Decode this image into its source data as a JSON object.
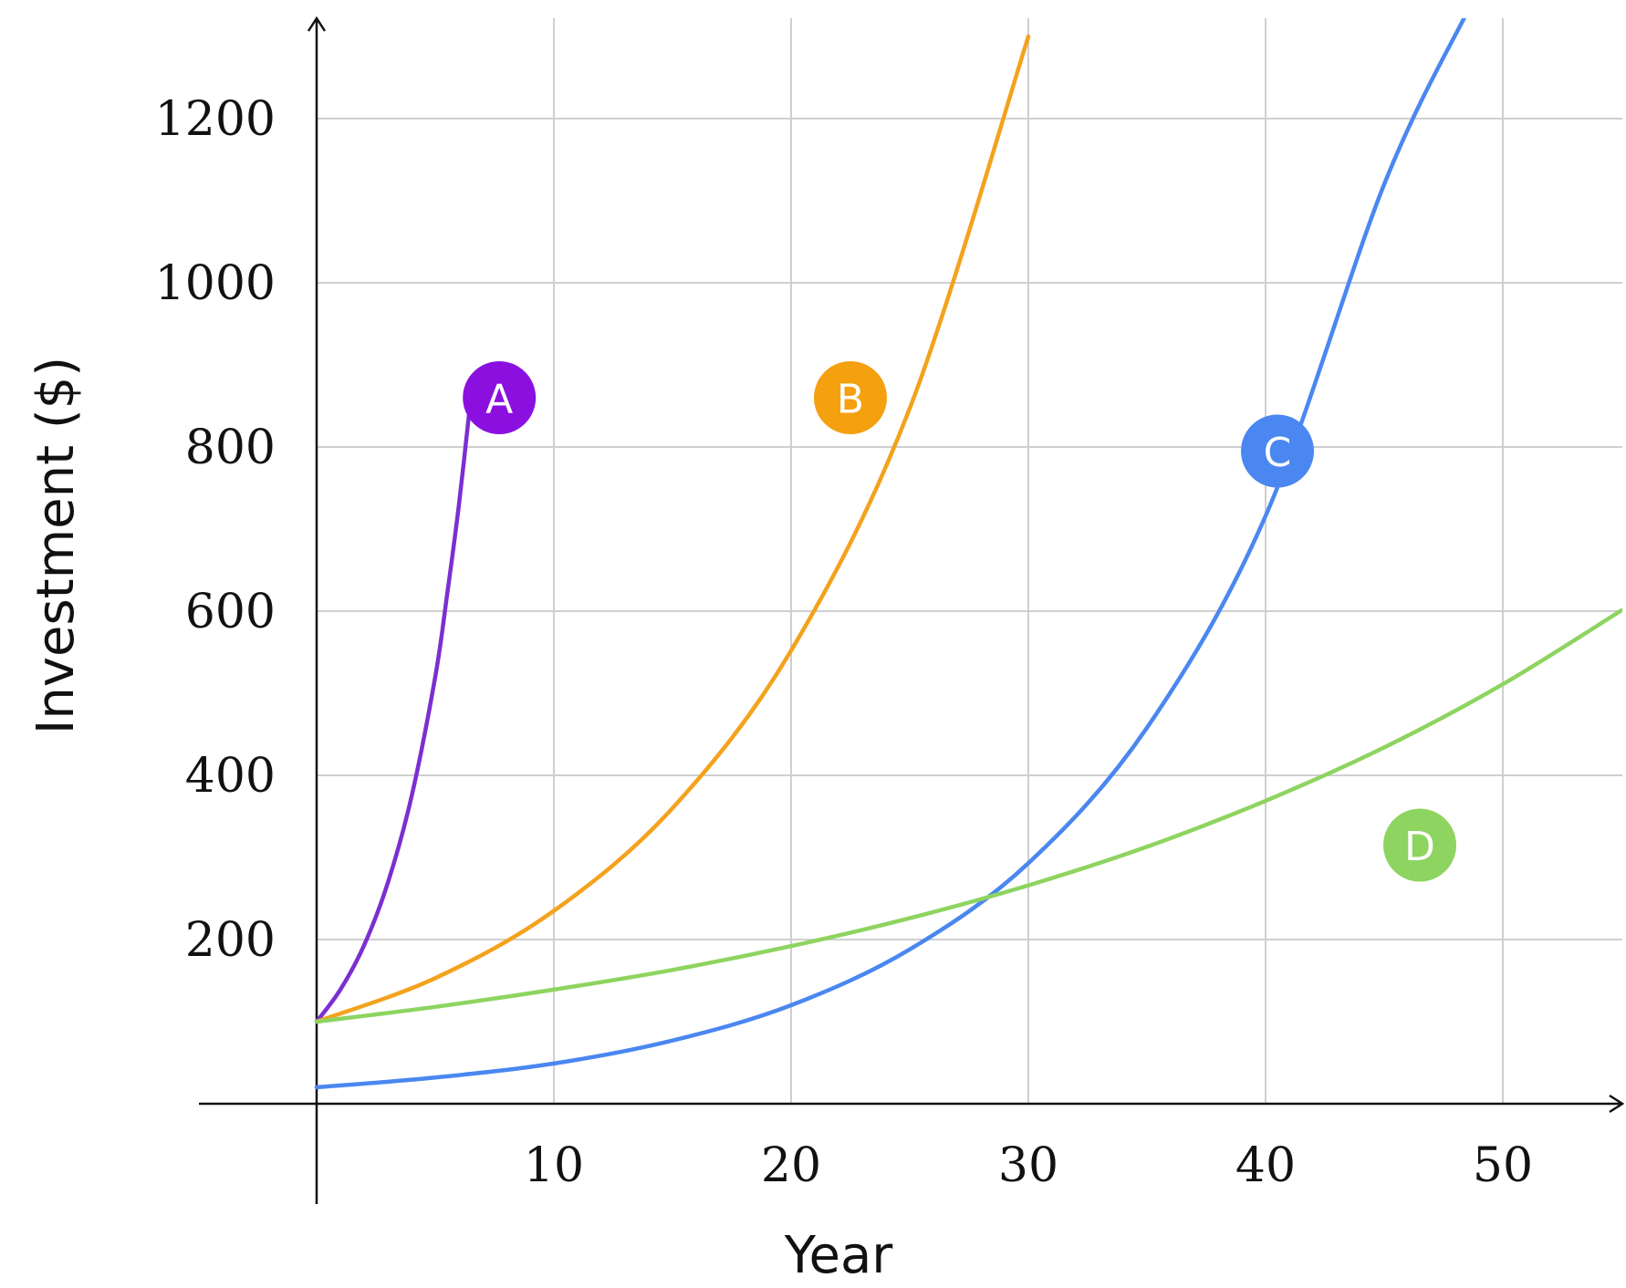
{
  "chart_data": {
    "type": "line",
    "xlabel": "Year",
    "ylabel": "Investment ($)",
    "xlim": [
      -5,
      55
    ],
    "ylim": [
      0,
      1320
    ],
    "xticks": [
      10,
      20,
      30,
      40,
      50
    ],
    "yticks": [
      200,
      400,
      600,
      800,
      1000,
      1200
    ],
    "xtick_labels": [
      "10",
      "20",
      "30",
      "40",
      "50"
    ],
    "ytick_labels": [
      "200",
      "400",
      "600",
      "800",
      "1000",
      "1200"
    ],
    "grid": true,
    "legend": "none",
    "series": [
      {
        "name": "A",
        "color": "#7b2fd0",
        "badge_color": "#8b10e0",
        "label_at": {
          "x": 7.7,
          "y": 860
        },
        "x": [
          0,
          1,
          2,
          3,
          4,
          5,
          5.5,
          6,
          6.5
        ],
        "values": [
          100,
          139,
          193,
          269,
          374,
          520,
          620,
          730,
          860
        ]
      },
      {
        "name": "B",
        "color": "#f4a21d",
        "badge_color": "#f4a00f",
        "label_at": {
          "x": 22.5,
          "y": 860
        },
        "x": [
          0,
          5,
          10,
          15,
          20,
          25,
          30
        ],
        "values": [
          100,
          153,
          235,
          360,
          552,
          847,
          1300
        ]
      },
      {
        "name": "C",
        "color": "#4a87f0",
        "badge_color": "#4a87f0",
        "label_at": {
          "x": 40.5,
          "y": 795
        },
        "x": [
          0,
          5,
          10,
          15,
          20,
          25,
          30,
          35,
          40,
          45,
          48.5
        ],
        "values": [
          20,
          32,
          49,
          77,
          120,
          188,
          293,
          458,
          716,
          1120,
          1330
        ]
      },
      {
        "name": "D",
        "color": "#8ed460",
        "badge_color": "#8ed460",
        "label_at": {
          "x": 46.5,
          "y": 315
        },
        "x": [
          0,
          5,
          10,
          15,
          20,
          25,
          30,
          35,
          40,
          45,
          50,
          55
        ],
        "values": [
          100,
          118,
          139,
          163,
          192,
          226,
          266,
          313,
          369,
          434,
          511,
          601
        ]
      }
    ]
  }
}
